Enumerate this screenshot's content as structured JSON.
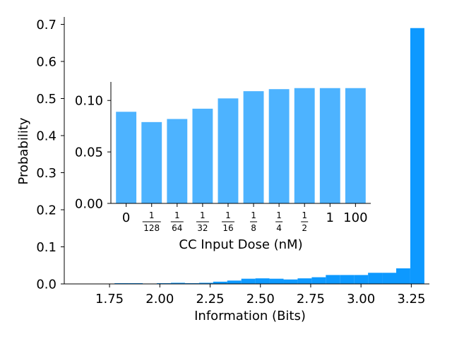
{
  "chart_data": [
    {
      "type": "bar",
      "role": "main-histogram",
      "xlabel": "Information (Bits)",
      "ylabel": "Probability",
      "xlim": [
        1.525,
        3.34
      ],
      "ylim": [
        0,
        0.72
      ],
      "xticks": [
        1.75,
        2.0,
        2.25,
        2.5,
        2.75,
        3.0,
        3.25
      ],
      "xtick_labels": [
        "1.75",
        "2.00",
        "2.25",
        "2.50",
        "2.75",
        "3.00",
        "3.25"
      ],
      "yticks": [
        0.0,
        0.1,
        0.2,
        0.3,
        0.4,
        0.5,
        0.6,
        0.7
      ],
      "ytick_labels": [
        "0.0",
        "0.1",
        "0.2",
        "0.3",
        "0.4",
        "0.5",
        "0.6",
        "0.7"
      ],
      "bin_width": 0.07,
      "bins": [
        {
          "x": 1.81,
          "y": 0.002
        },
        {
          "x": 1.88,
          "y": 0.002
        },
        {
          "x": 1.95,
          "y": 0.001
        },
        {
          "x": 2.02,
          "y": 0.002
        },
        {
          "x": 2.09,
          "y": 0.003
        },
        {
          "x": 2.16,
          "y": 0.002
        },
        {
          "x": 2.23,
          "y": 0.003
        },
        {
          "x": 2.3,
          "y": 0.006
        },
        {
          "x": 2.37,
          "y": 0.009
        },
        {
          "x": 2.44,
          "y": 0.014
        },
        {
          "x": 2.51,
          "y": 0.015
        },
        {
          "x": 2.58,
          "y": 0.014
        },
        {
          "x": 2.65,
          "y": 0.012
        },
        {
          "x": 2.72,
          "y": 0.015
        },
        {
          "x": 2.79,
          "y": 0.018
        },
        {
          "x": 2.86,
          "y": 0.024
        },
        {
          "x": 2.93,
          "y": 0.024
        },
        {
          "x": 3.0,
          "y": 0.024
        },
        {
          "x": 3.07,
          "y": 0.03
        },
        {
          "x": 3.14,
          "y": 0.03
        },
        {
          "x": 3.21,
          "y": 0.042
        },
        {
          "x": 3.28,
          "y": 0.69
        }
      ],
      "color": "#0d99ff",
      "grid": false
    },
    {
      "type": "bar",
      "role": "inset",
      "xlabel": "CC Input Dose (nM)",
      "ylabel": "",
      "ylim": [
        0,
        0.118
      ],
      "yticks": [
        0.0,
        0.05,
        0.1
      ],
      "ytick_labels": [
        "0.00",
        "0.05",
        "0.10"
      ],
      "categories": [
        {
          "kind": "text",
          "label": "0"
        },
        {
          "kind": "frac",
          "num": "1",
          "den": "128"
        },
        {
          "kind": "frac",
          "num": "1",
          "den": "64"
        },
        {
          "kind": "frac",
          "num": "1",
          "den": "32"
        },
        {
          "kind": "frac",
          "num": "1",
          "den": "16"
        },
        {
          "kind": "frac",
          "num": "1",
          "den": "8"
        },
        {
          "kind": "frac",
          "num": "1",
          "den": "4"
        },
        {
          "kind": "frac",
          "num": "1",
          "den": "2"
        },
        {
          "kind": "text",
          "label": "1"
        },
        {
          "kind": "text",
          "label": "100"
        }
      ],
      "values": [
        0.089,
        0.079,
        0.082,
        0.092,
        0.102,
        0.109,
        0.111,
        0.112,
        0.112,
        0.112
      ],
      "color": "#4db3ff",
      "grid": false
    }
  ]
}
